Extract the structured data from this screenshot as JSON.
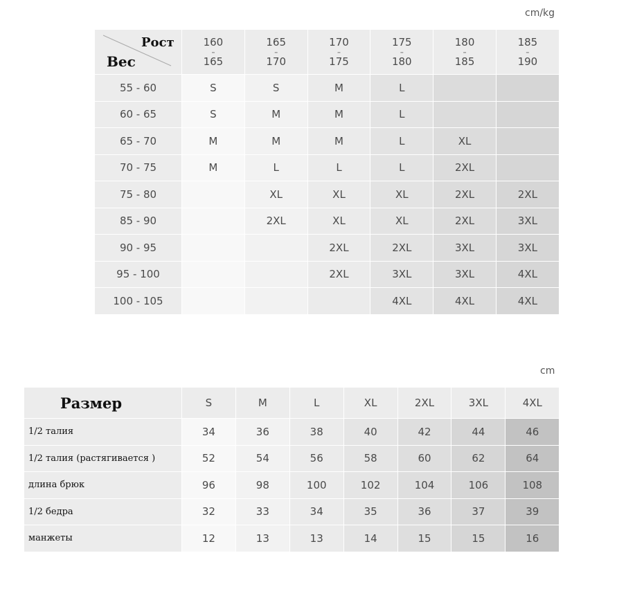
{
  "table1": {
    "unit": "cm/kg",
    "corner_top": "Рост",
    "corner_bottom": "Вес",
    "heights": [
      [
        "160",
        "165"
      ],
      [
        "165",
        "170"
      ],
      [
        "170",
        "175"
      ],
      [
        "175",
        "180"
      ],
      [
        "180",
        "185"
      ],
      [
        "185",
        "190"
      ]
    ],
    "rows": [
      {
        "weight": "55 - 60",
        "sizes": [
          "S",
          "S",
          "M",
          "L",
          "",
          ""
        ]
      },
      {
        "weight": "60 - 65",
        "sizes": [
          "S",
          "M",
          "M",
          "L",
          "",
          ""
        ]
      },
      {
        "weight": "65 - 70",
        "sizes": [
          "M",
          "M",
          "M",
          "L",
          "XL",
          ""
        ]
      },
      {
        "weight": "70 - 75",
        "sizes": [
          "M",
          "L",
          "L",
          "L",
          "2XL",
          ""
        ]
      },
      {
        "weight": "75 - 80",
        "sizes": [
          "",
          "XL",
          "XL",
          "XL",
          "2XL",
          "2XL"
        ]
      },
      {
        "weight": "85 - 90",
        "sizes": [
          "",
          "2XL",
          "XL",
          "XL",
          "2XL",
          "3XL"
        ]
      },
      {
        "weight": "90 - 95",
        "sizes": [
          "",
          "",
          "2XL",
          "2XL",
          "3XL",
          "3XL"
        ]
      },
      {
        "weight": "95 - 100",
        "sizes": [
          "",
          "",
          "2XL",
          "3XL",
          "3XL",
          "4XL"
        ]
      },
      {
        "weight": "100 - 105",
        "sizes": [
          "",
          "",
          "",
          "4XL",
          "4XL",
          "4XL"
        ]
      }
    ],
    "column_colors": [
      "#f8f8f8",
      "#f2f2f2",
      "#ebebeb",
      "#e3e3e3",
      "#dcdcdc",
      "#d6d6d6"
    ]
  },
  "table2": {
    "unit": "cm",
    "title": "Размер",
    "sizes": [
      "S",
      "M",
      "L",
      "XL",
      "2XL",
      "3XL",
      "4XL"
    ],
    "rows": [
      {
        "label": "1/2 талия",
        "values": [
          "34",
          "36",
          "38",
          "40",
          "42",
          "44",
          "46"
        ]
      },
      {
        "label": "1/2 талия (растягивается )",
        "values": [
          "52",
          "54",
          "56",
          "58",
          "60",
          "62",
          "64"
        ]
      },
      {
        "label": "длина брюк",
        "values": [
          "96",
          "98",
          "100",
          "102",
          "104",
          "106",
          "108"
        ]
      },
      {
        "label": "1/2 бедра",
        "values": [
          "32",
          "33",
          "34",
          "35",
          "36",
          "37",
          "39"
        ]
      },
      {
        "label": "манжеты",
        "values": [
          "12",
          "13",
          "13",
          "14",
          "15",
          "15",
          "16"
        ]
      }
    ],
    "column_colors": [
      "#f8f8f8",
      "#f2f2f2",
      "#ebebeb",
      "#e5e5e5",
      "#dedede",
      "#d6d6d6",
      "#c2c2c2"
    ]
  }
}
